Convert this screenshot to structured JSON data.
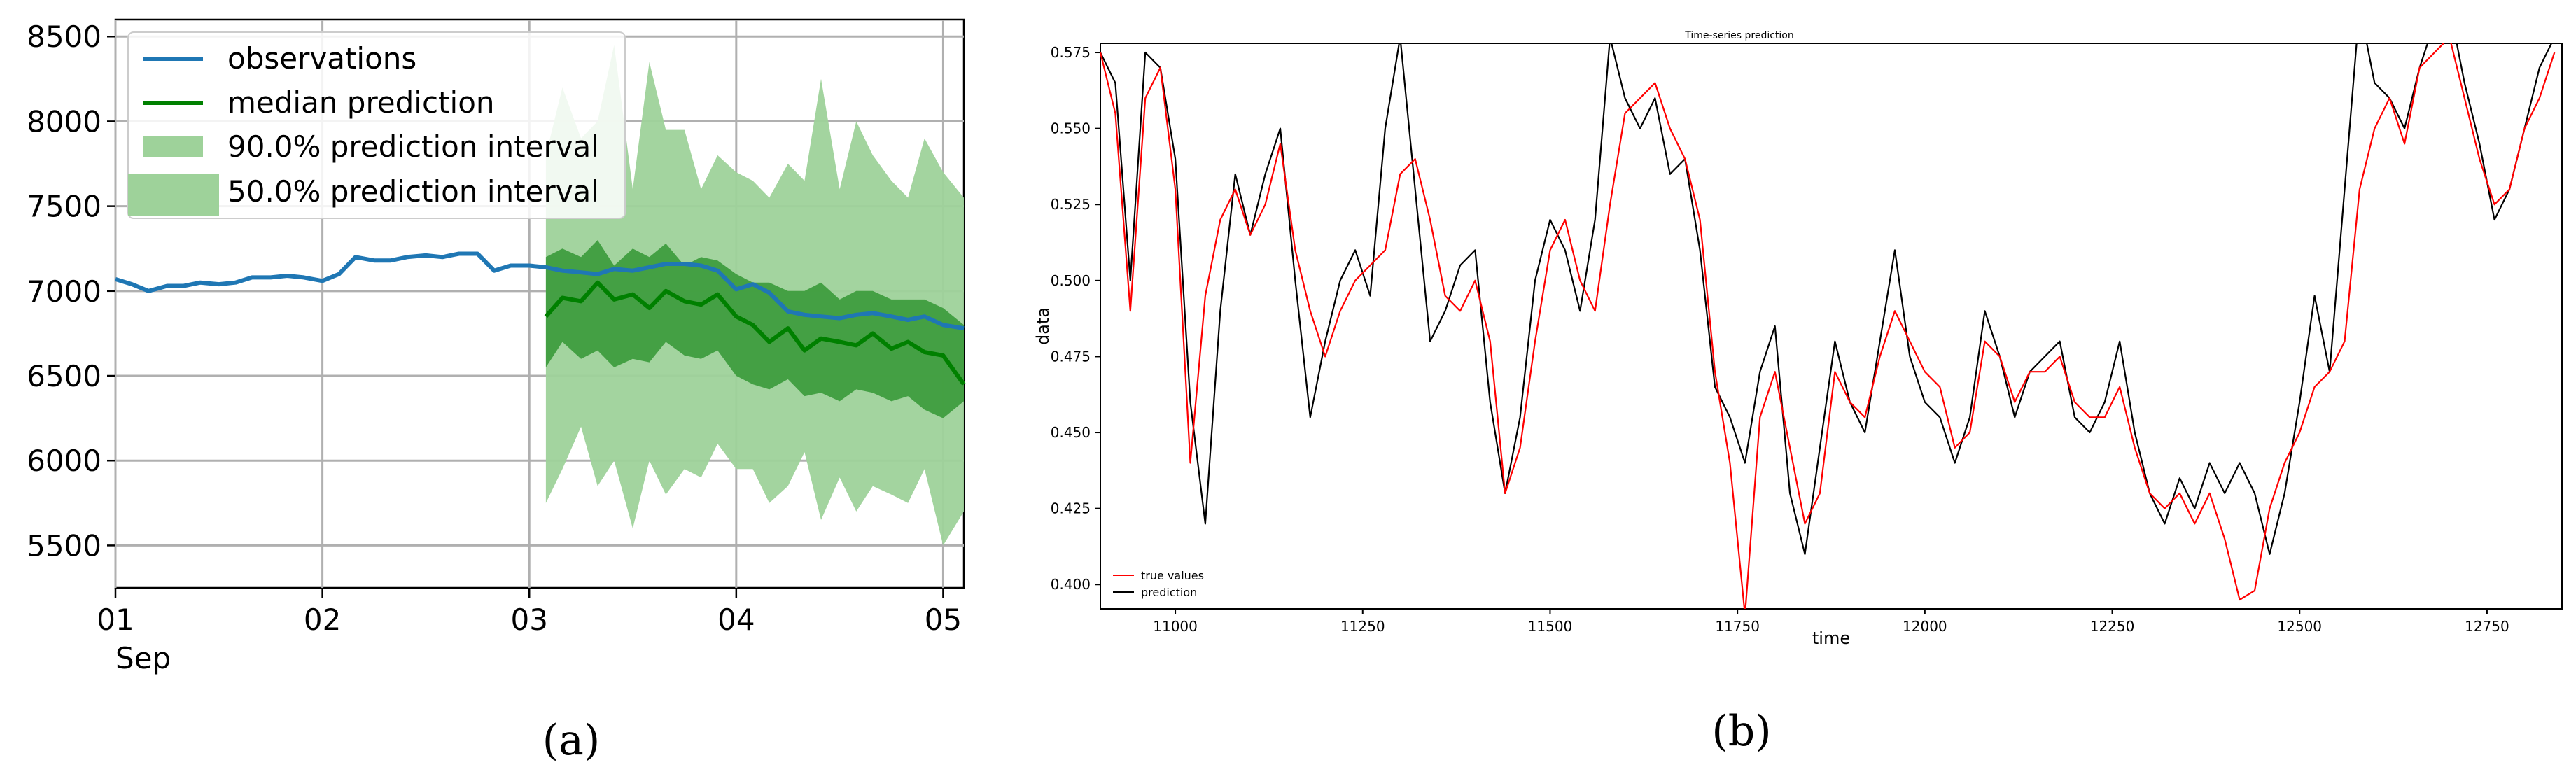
{
  "panel_a": {
    "caption": "(a)",
    "legend": {
      "observations": "observations",
      "median": "median prediction",
      "interval_90": "90.0% prediction interval",
      "interval_50": "50.0% prediction interval"
    },
    "x_ticks": [
      "01",
      "02",
      "03",
      "04",
      "05"
    ],
    "x_sublabel": "Sep",
    "y_ticks": [
      "5500",
      "6000",
      "6500",
      "7000",
      "7500",
      "8000",
      "8500"
    ]
  },
  "panel_b": {
    "caption": "(b)",
    "title": "Time-series prediction",
    "xlabel": "time",
    "ylabel": "data",
    "legend": {
      "true_values": "true values",
      "prediction": "prediction"
    },
    "x_ticks": [
      "11000",
      "11250",
      "11500",
      "11750",
      "12000",
      "12250",
      "12500",
      "12750"
    ],
    "y_ticks": [
      "0.400",
      "0.425",
      "0.450",
      "0.475",
      "0.500",
      "0.525",
      "0.550",
      "0.575"
    ]
  },
  "colors": {
    "observations": "#1f77b4",
    "median": "#008000",
    "interval_90": "#9ed29a",
    "interval_50": "#3a9a3a",
    "true_values": "#ff0000",
    "prediction": "#000000"
  },
  "chart_data": [
    {
      "type": "line",
      "x_unit": "day of September",
      "xlim": [
        1,
        5.1
      ],
      "ylim": [
        5250,
        8600
      ],
      "grid": true,
      "legend_position": "top-left",
      "x_ticks": [
        1,
        2,
        3,
        4,
        5
      ],
      "y_ticks": [
        5500,
        6000,
        6500,
        7000,
        7500,
        8000,
        8500
      ],
      "series": [
        {
          "name": "observations",
          "x": [
            1.0,
            1.08,
            1.16,
            1.25,
            1.33,
            1.41,
            1.5,
            1.58,
            1.66,
            1.75,
            1.83,
            1.91,
            2.0,
            2.08,
            2.16,
            2.25,
            2.33,
            2.41,
            2.5,
            2.58,
            2.66,
            2.75,
            2.83,
            2.91,
            3.0,
            3.08,
            3.16,
            3.25,
            3.33,
            3.41,
            3.5,
            3.58,
            3.66,
            3.75,
            3.83,
            3.91,
            4.0,
            4.08,
            4.16,
            4.25,
            4.33,
            4.41,
            4.5,
            4.58,
            4.66,
            4.75,
            4.83,
            4.91,
            5.0,
            5.1
          ],
          "values": [
            7070,
            7040,
            7000,
            7030,
            7030,
            7050,
            7040,
            7050,
            7080,
            7080,
            7090,
            7080,
            7060,
            7100,
            7200,
            7180,
            7180,
            7200,
            7210,
            7200,
            7220,
            7220,
            7120,
            7150,
            7150,
            7140,
            7120,
            7110,
            7100,
            7130,
            7120,
            7140,
            7160,
            7160,
            7150,
            7120,
            7010,
            7040,
            6990,
            6880,
            6860,
            6850,
            6840,
            6860,
            6870,
            6850,
            6830,
            6850,
            6800,
            6780
          ]
        },
        {
          "name": "median prediction",
          "x": [
            3.08,
            3.16,
            3.25,
            3.33,
            3.41,
            3.5,
            3.58,
            3.66,
            3.75,
            3.83,
            3.91,
            4.0,
            4.08,
            4.16,
            4.25,
            4.33,
            4.41,
            4.5,
            4.58,
            4.66,
            4.75,
            4.83,
            4.91,
            5.0,
            5.1
          ],
          "values": [
            6850,
            6960,
            6940,
            7050,
            6950,
            6980,
            6900,
            7000,
            6940,
            6920,
            6980,
            6850,
            6800,
            6700,
            6780,
            6650,
            6720,
            6700,
            6680,
            6750,
            6660,
            6700,
            6640,
            6620,
            6450
          ]
        },
        {
          "name": "90.0% prediction interval",
          "x": [
            3.08,
            3.16,
            3.25,
            3.33,
            3.41,
            3.5,
            3.58,
            3.66,
            3.75,
            3.83,
            3.91,
            4.0,
            4.08,
            4.16,
            4.25,
            4.33,
            4.41,
            4.5,
            4.58,
            4.66,
            4.75,
            4.83,
            4.91,
            5.0,
            5.1
          ],
          "lower": [
            5750,
            5950,
            6200,
            5850,
            6000,
            5600,
            6000,
            5800,
            5950,
            5900,
            6100,
            5950,
            5950,
            5750,
            5850,
            6050,
            5650,
            5900,
            5700,
            5850,
            5800,
            5750,
            5950,
            5500,
            5700
          ],
          "upper": [
            7800,
            8200,
            7900,
            8000,
            8450,
            7600,
            8350,
            7950,
            7950,
            7600,
            7800,
            7700,
            7650,
            7550,
            7750,
            7650,
            8250,
            7600,
            8000,
            7800,
            7650,
            7550,
            7900,
            7700,
            7550
          ]
        },
        {
          "name": "50.0% prediction interval",
          "x": [
            3.08,
            3.16,
            3.25,
            3.33,
            3.41,
            3.5,
            3.58,
            3.66,
            3.75,
            3.83,
            3.91,
            4.0,
            4.08,
            4.16,
            4.25,
            4.33,
            4.41,
            4.5,
            4.58,
            4.66,
            4.75,
            4.83,
            4.91,
            5.0,
            5.1
          ],
          "lower": [
            6550,
            6700,
            6600,
            6650,
            6550,
            6600,
            6580,
            6700,
            6620,
            6600,
            6650,
            6500,
            6450,
            6420,
            6480,
            6380,
            6400,
            6350,
            6420,
            6400,
            6350,
            6380,
            6300,
            6250,
            6350
          ],
          "upper": [
            7200,
            7250,
            7200,
            7300,
            7150,
            7250,
            7200,
            7280,
            7150,
            7200,
            7180,
            7100,
            7050,
            7050,
            7000,
            7000,
            7050,
            6950,
            7000,
            7000,
            6950,
            6950,
            6950,
            6900,
            6800
          ]
        }
      ]
    },
    {
      "type": "line",
      "title": "Time-series prediction",
      "xlabel": "time",
      "ylabel": "data",
      "xlim": [
        10900,
        12850
      ],
      "ylim": [
        0.392,
        0.578
      ],
      "grid": false,
      "legend_position": "bottom-left",
      "x_ticks": [
        11000,
        11250,
        11500,
        11750,
        12000,
        12250,
        12500,
        12750
      ],
      "y_ticks": [
        0.4,
        0.425,
        0.45,
        0.475,
        0.5,
        0.525,
        0.55,
        0.575
      ],
      "series": [
        {
          "name": "true values",
          "x": [
            10900,
            10920,
            10940,
            10960,
            10980,
            11000,
            11020,
            11040,
            11060,
            11080,
            11100,
            11120,
            11140,
            11160,
            11180,
            11200,
            11220,
            11240,
            11260,
            11280,
            11300,
            11320,
            11340,
            11360,
            11380,
            11400,
            11420,
            11440,
            11460,
            11480,
            11500,
            11520,
            11540,
            11560,
            11580,
            11600,
            11620,
            11640,
            11660,
            11680,
            11700,
            11720,
            11740,
            11760,
            11780,
            11800,
            11820,
            11840,
            11860,
            11880,
            11900,
            11920,
            11940,
            11960,
            11980,
            12000,
            12020,
            12040,
            12060,
            12080,
            12100,
            12120,
            12140,
            12160,
            12180,
            12200,
            12220,
            12240,
            12260,
            12280,
            12300,
            12320,
            12340,
            12360,
            12380,
            12400,
            12420,
            12440,
            12460,
            12480,
            12500,
            12520,
            12540,
            12560,
            12580,
            12600,
            12620,
            12640,
            12660,
            12680,
            12700,
            12720,
            12740,
            12760,
            12780,
            12800,
            12820,
            12840
          ],
          "values": [
            0.575,
            0.555,
            0.49,
            0.56,
            0.57,
            0.53,
            0.44,
            0.495,
            0.52,
            0.53,
            0.515,
            0.525,
            0.545,
            0.51,
            0.49,
            0.475,
            0.49,
            0.5,
            0.505,
            0.51,
            0.535,
            0.54,
            0.52,
            0.495,
            0.49,
            0.5,
            0.48,
            0.43,
            0.445,
            0.48,
            0.51,
            0.52,
            0.5,
            0.49,
            0.525,
            0.555,
            0.56,
            0.565,
            0.55,
            0.54,
            0.52,
            0.47,
            0.44,
            0.39,
            0.455,
            0.47,
            0.445,
            0.42,
            0.43,
            0.47,
            0.46,
            0.455,
            0.475,
            0.49,
            0.48,
            0.47,
            0.465,
            0.445,
            0.45,
            0.48,
            0.475,
            0.46,
            0.47,
            0.47,
            0.475,
            0.46,
            0.455,
            0.455,
            0.465,
            0.445,
            0.43,
            0.425,
            0.43,
            0.42,
            0.43,
            0.415,
            0.395,
            0.398,
            0.425,
            0.44,
            0.45,
            0.465,
            0.47,
            0.48,
            0.53,
            0.55,
            0.56,
            0.545,
            0.57,
            0.575,
            0.58,
            0.56,
            0.54,
            0.525,
            0.53,
            0.55,
            0.56,
            0.575
          ]
        },
        {
          "name": "prediction",
          "x": [
            10900,
            10920,
            10940,
            10960,
            10980,
            11000,
            11020,
            11040,
            11060,
            11080,
            11100,
            11120,
            11140,
            11160,
            11180,
            11200,
            11220,
            11240,
            11260,
            11280,
            11300,
            11320,
            11340,
            11360,
            11380,
            11400,
            11420,
            11440,
            11460,
            11480,
            11500,
            11520,
            11540,
            11560,
            11580,
            11600,
            11620,
            11640,
            11660,
            11680,
            11700,
            11720,
            11740,
            11760,
            11780,
            11800,
            11820,
            11840,
            11860,
            11880,
            11900,
            11920,
            11940,
            11960,
            11980,
            12000,
            12020,
            12040,
            12060,
            12080,
            12100,
            12120,
            12140,
            12160,
            12180,
            12200,
            12220,
            12240,
            12260,
            12280,
            12300,
            12320,
            12340,
            12360,
            12380,
            12400,
            12420,
            12440,
            12460,
            12480,
            12500,
            12520,
            12540,
            12560,
            12580,
            12600,
            12620,
            12640,
            12660,
            12680,
            12700,
            12720,
            12740,
            12760,
            12780,
            12800,
            12820,
            12840
          ],
          "values": [
            0.575,
            0.565,
            0.5,
            0.575,
            0.57,
            0.54,
            0.46,
            0.42,
            0.49,
            0.535,
            0.515,
            0.535,
            0.55,
            0.5,
            0.455,
            0.48,
            0.5,
            0.51,
            0.495,
            0.55,
            0.58,
            0.53,
            0.48,
            0.49,
            0.505,
            0.51,
            0.46,
            0.43,
            0.455,
            0.5,
            0.52,
            0.51,
            0.49,
            0.52,
            0.58,
            0.56,
            0.55,
            0.56,
            0.535,
            0.54,
            0.51,
            0.465,
            0.455,
            0.44,
            0.47,
            0.485,
            0.43,
            0.41,
            0.445,
            0.48,
            0.46,
            0.45,
            0.48,
            0.51,
            0.475,
            0.46,
            0.455,
            0.44,
            0.455,
            0.49,
            0.475,
            0.455,
            0.47,
            0.475,
            0.48,
            0.455,
            0.45,
            0.46,
            0.48,
            0.45,
            0.43,
            0.42,
            0.435,
            0.425,
            0.44,
            0.43,
            0.44,
            0.43,
            0.41,
            0.43,
            0.46,
            0.495,
            0.47,
            0.53,
            0.59,
            0.565,
            0.56,
            0.55,
            0.57,
            0.585,
            0.59,
            0.565,
            0.545,
            0.52,
            0.53,
            0.55,
            0.57,
            0.58
          ]
        }
      ]
    }
  ]
}
